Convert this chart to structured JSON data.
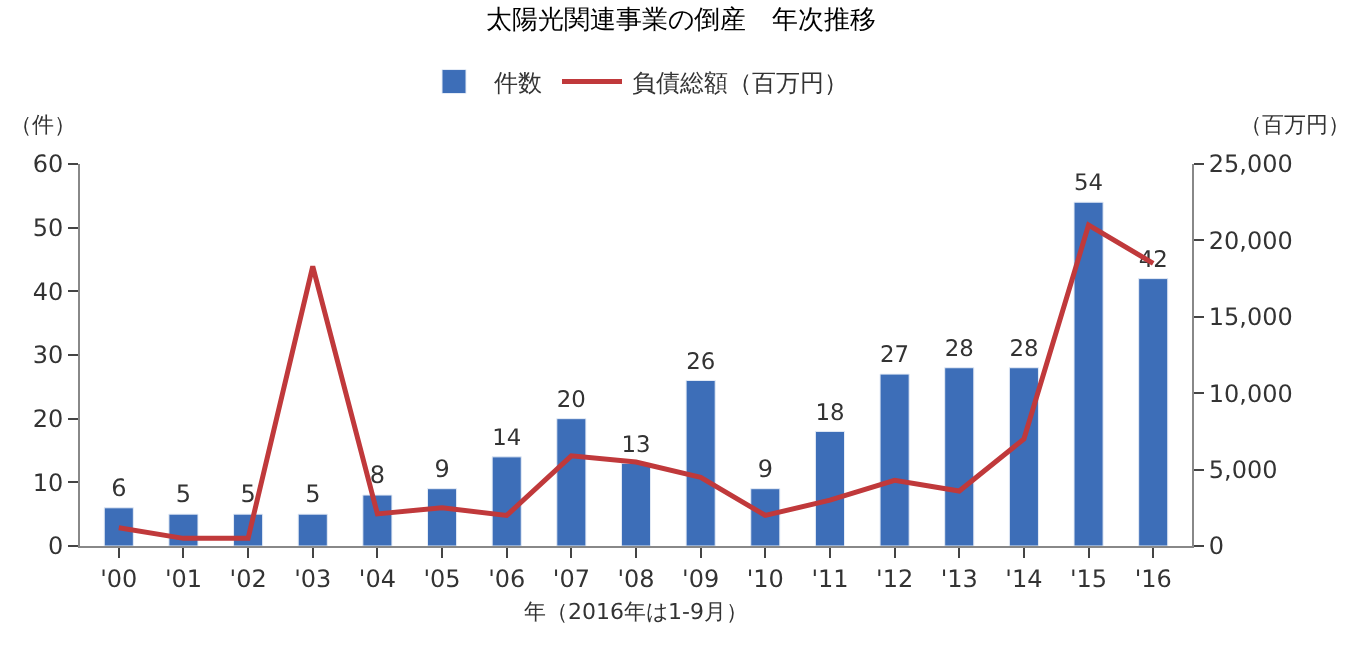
{
  "chart_data": {
    "type": "bar",
    "title": "太陽光関連事業の倒産　年次推移",
    "xlabel": "年（2016年は1-9月）",
    "ylabel": "（件）",
    "y2label": "（百万円）",
    "categories": [
      "'00",
      "'01",
      "'02",
      "'03",
      "'04",
      "'05",
      "'06",
      "'07",
      "'08",
      "'09",
      "'10",
      "'11",
      "'12",
      "'13",
      "'14",
      "'15",
      "'16"
    ],
    "series": [
      {
        "name": "件数",
        "color": "#3d6eb8",
        "values": [
          6,
          5,
          5,
          5,
          8,
          9,
          14,
          20,
          13,
          26,
          9,
          18,
          27,
          28,
          28,
          54,
          42
        ],
        "value_labels": [
          "6",
          "5",
          "5",
          "5",
          "8",
          "9",
          "14",
          "20",
          "13",
          "26",
          "9",
          "18",
          "27",
          "28",
          "28",
          "54",
          "42"
        ]
      },
      {
        "name": "負債総額（百万円）",
        "type": "line",
        "axis": "y2",
        "color": "#c0393b",
        "values": [
          1200,
          500,
          500,
          18300,
          2100,
          2500,
          2000,
          5900,
          5500,
          4500,
          2000,
          3000,
          4300,
          3600,
          7000,
          21000,
          18500
        ]
      }
    ],
    "ylim": [
      0,
      60
    ],
    "yticks": [
      0,
      10,
      20,
      30,
      40,
      50,
      60
    ],
    "y2lim": [
      0,
      25000
    ],
    "y2ticks": [
      0,
      {
        "value": 5000,
        "label": "5,000"
      },
      {
        "value": 10000,
        "label": "10,000"
      },
      {
        "value": 15000,
        "label": "15,000"
      },
      {
        "value": 20000,
        "label": "20,000"
      },
      {
        "value": 25000,
        "label": "25,000"
      }
    ],
    "legend": "top",
    "marker": "none",
    "line_style": "solid"
  }
}
